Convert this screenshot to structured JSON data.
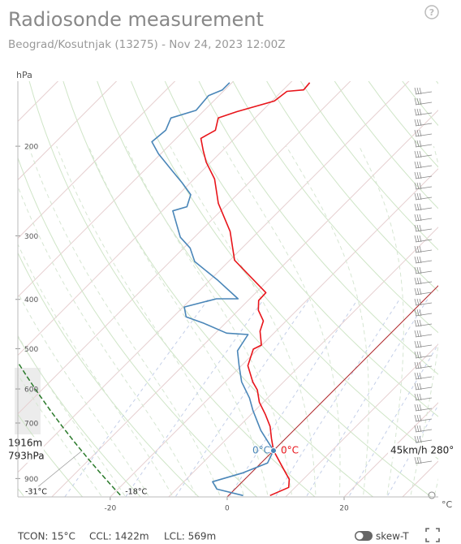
{
  "chart_data": {
    "type": "skewt",
    "title": "Radiosonde measurement",
    "subtitle": "Beograd/Kosutnjak (13275) - Nov 24, 2023 12:00Z",
    "y_label": "hPa",
    "x_label": "°C",
    "log_y": true,
    "skew_degrees": 45,
    "ylim": [
      978,
      149
    ],
    "yticks": [
      200,
      300,
      400,
      500,
      600,
      700,
      900
    ],
    "xlim": [
      -35.8,
      36.1
    ],
    "xticks": [
      -20,
      0,
      20
    ],
    "series": [
      {
        "color": "#e8141a",
        "pressure": [
          972,
          937,
          903,
          864,
          793,
          751,
          711,
          673,
          637,
          603,
          581,
          540,
          501,
          492,
          462,
          441,
          420,
          402,
          388,
          335,
          294,
          259,
          232,
          215,
          204,
          193,
          186,
          176,
          171,
          163,
          156,
          155,
          150
        ],
        "values": [
          7.1,
          8.9,
          7.6,
          5.0,
          0,
          -2.4,
          -4.7,
          -7.6,
          -10.7,
          -13.1,
          -15.3,
          -18.9,
          -20.8,
          -20.1,
          -22.7,
          -23.9,
          -26.6,
          -28.2,
          -28.3,
          -39.2,
          -44.9,
          -51.7,
          -56.5,
          -60.8,
          -63.3,
          -65.8,
          -64.7,
          -66.3,
          -64.2,
          -59.6,
          -59.1,
          -56.5,
          -56.7
        ]
      },
      {
        "color": "#4a86b8",
        "pressure": [
          972,
          944,
          913,
          877,
          839,
          793,
          724,
          661,
          625,
          581,
          540,
          505,
          469,
          466,
          446,
          433,
          414,
          399,
          399,
          367,
          337,
          317,
          302,
          268,
          263,
          249,
          236,
          223,
          207,
          196,
          186,
          176,
          170,
          159,
          155,
          150
        ],
        "values": [
          2.5,
          -3.1,
          -5.1,
          -1.4,
          1.1,
          0,
          -5.6,
          -10.4,
          -13.1,
          -17.2,
          -20.4,
          -23.2,
          -24.2,
          -28.1,
          -33.6,
          -37.8,
          -39.8,
          -35.7,
          -32.0,
          -38.6,
          -45.8,
          -48.9,
          -52.4,
          -58.2,
          -56.5,
          -57.9,
          -61.4,
          -65.3,
          -70.4,
          -73.6,
          -73.2,
          -74.4,
          -71.4,
          -71.8,
          -70.4,
          -70.4
        ]
      }
    ],
    "freezing_level": {
      "pressure": 793,
      "temperature": 0,
      "height_label": "1916m",
      "pressure_label": "793hPa",
      "dewpoint_label": "0°C",
      "temperature_label": "0°C",
      "wind_label": "45km/h 280°"
    },
    "surface_labels": [
      "-31°C",
      "-18°C"
    ],
    "parcel_bottom_temperature": -18,
    "footer": [
      "TCON: 15°C",
      "CCL: 1422m",
      "LCL: 569m"
    ],
    "toggle_label": "skew-T"
  }
}
